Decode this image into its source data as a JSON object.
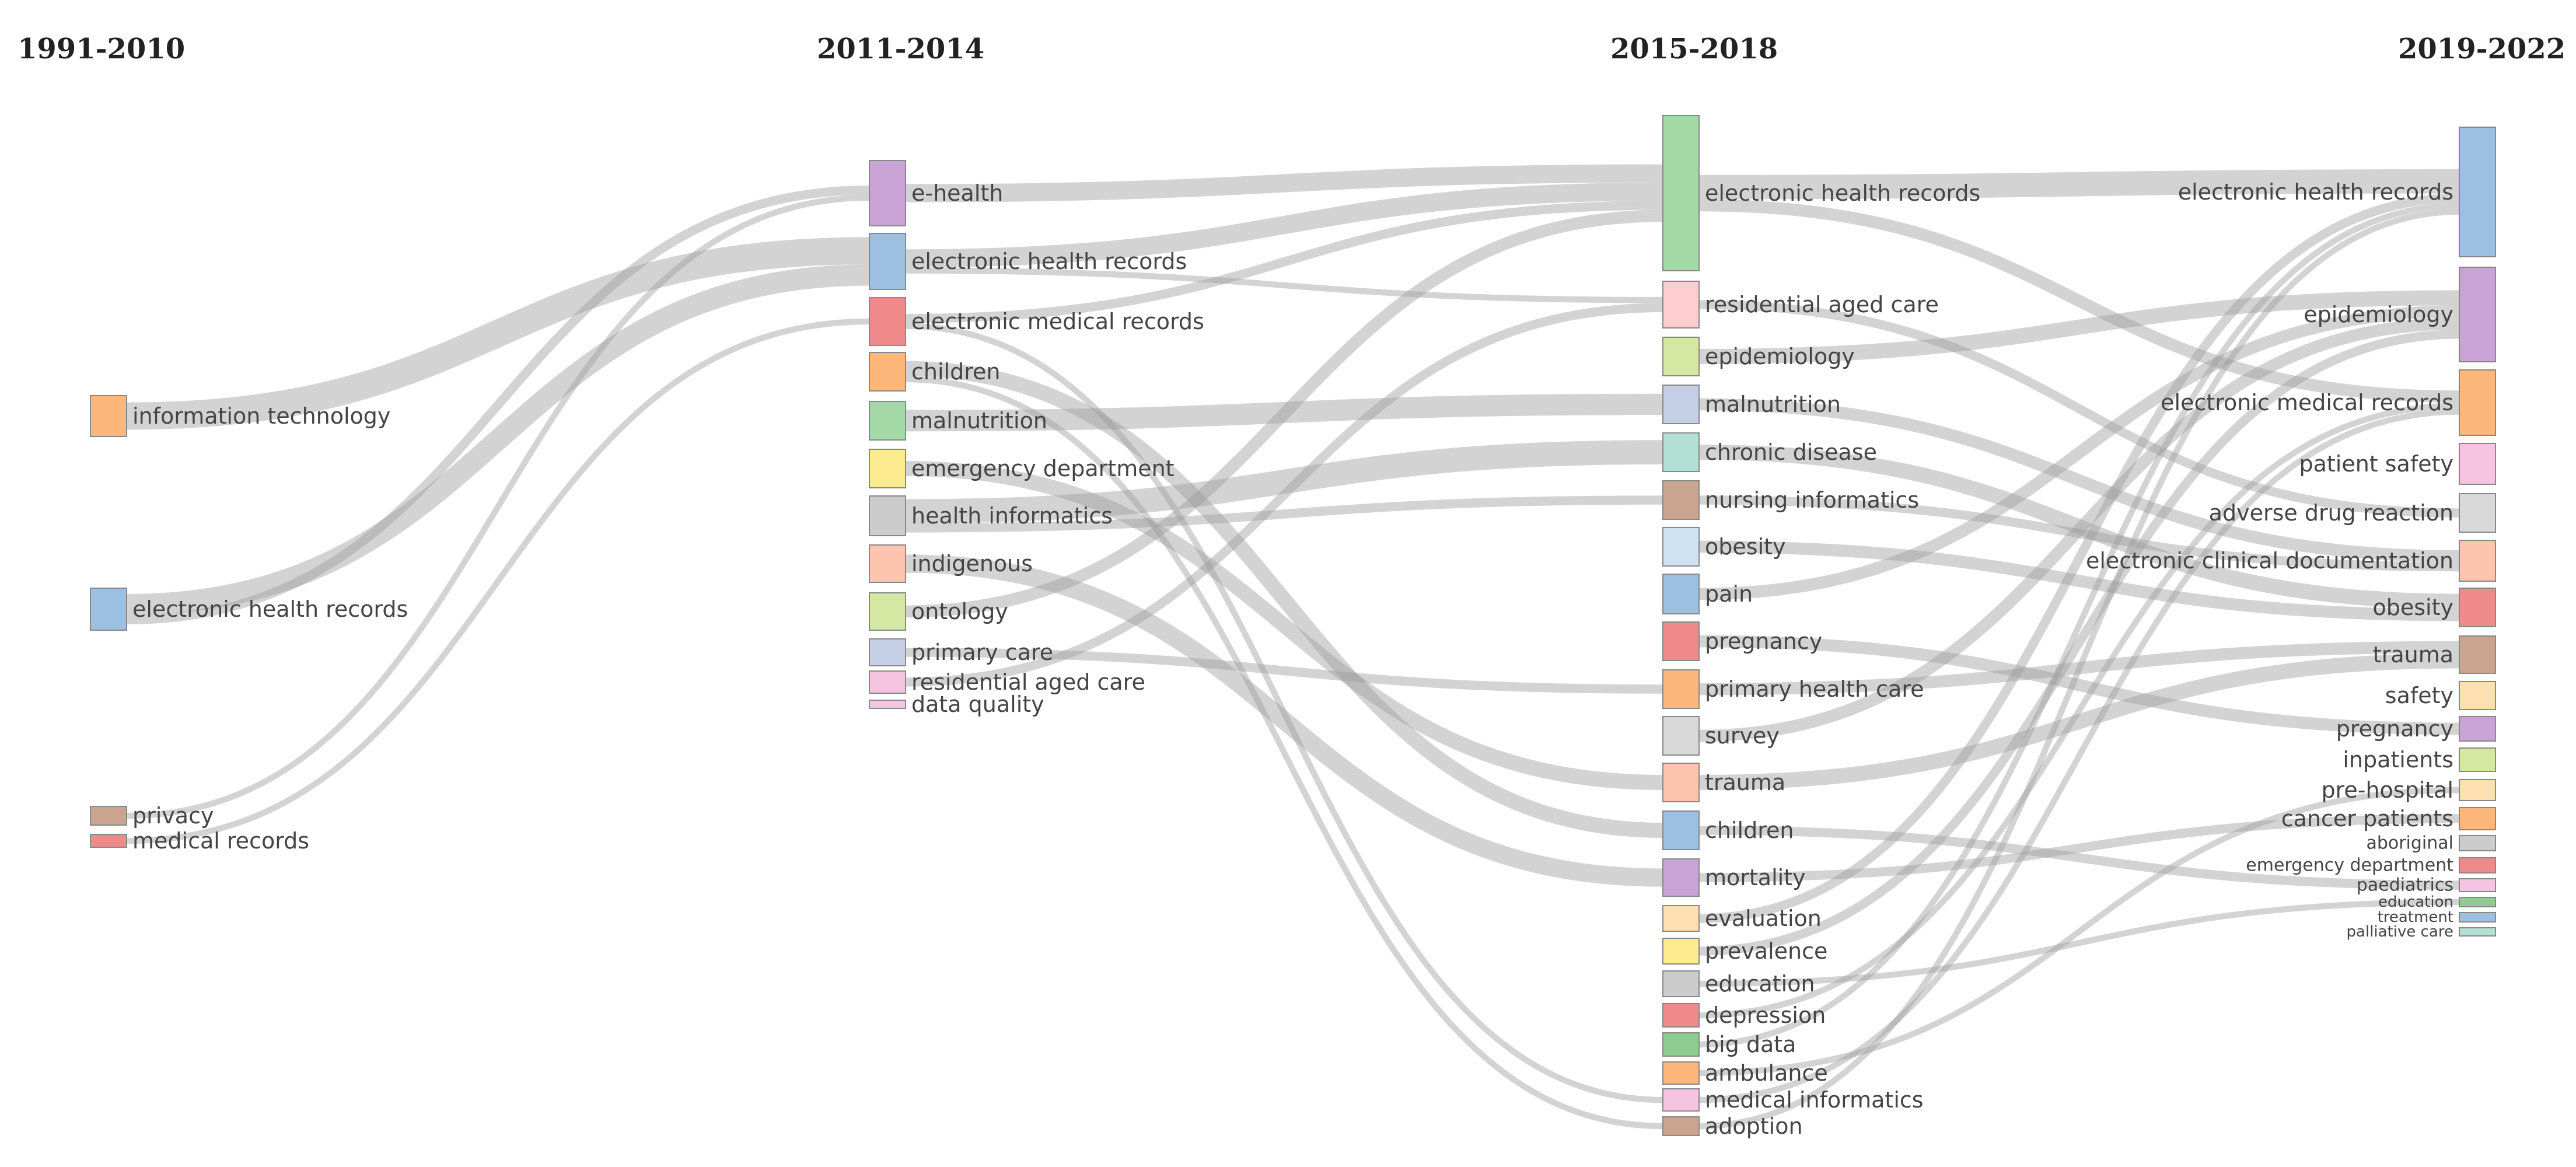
{
  "columns": [
    {
      "title": "1991-2010",
      "nodes": [
        {
          "label": "information technology",
          "color": "#fdb77a"
        },
        {
          "label": "electronic health records",
          "color": "#9dbfe0"
        },
        {
          "label": "privacy",
          "color": "#c9a58f"
        },
        {
          "label": "medical records",
          "color": "#ef8a8a"
        }
      ]
    },
    {
      "title": "2011-2014",
      "nodes": [
        {
          "label": "e-health",
          "color": "#c9a3d6"
        },
        {
          "label": "electronic health records",
          "color": "#9dbfe0"
        },
        {
          "label": "electronic medical records",
          "color": "#ef8a8a"
        },
        {
          "label": "children",
          "color": "#fdb77a"
        },
        {
          "label": "malnutrition",
          "color": "#a3d9a5"
        },
        {
          "label": "emergency department",
          "color": "#fdeb8f"
        },
        {
          "label": "health informatics",
          "color": "#cccccc"
        },
        {
          "label": "indigenous",
          "color": "#fdc5b0"
        },
        {
          "label": "ontology",
          "color": "#d4e8a3"
        },
        {
          "label": "primary care",
          "color": "#c5cfe8"
        },
        {
          "label": "residential aged care",
          "color": "#f5c4e0"
        },
        {
          "label": "data quality",
          "color": "#f5c4e0"
        }
      ]
    },
    {
      "title": "2015-2018",
      "nodes": [
        {
          "label": "electronic health records",
          "color": "#a3d9a5"
        },
        {
          "label": "residential aged care",
          "color": "#fdcdd0"
        },
        {
          "label": "epidemiology",
          "color": "#d4e8a3"
        },
        {
          "label": "malnutrition",
          "color": "#c5cfe8"
        },
        {
          "label": "chronic disease",
          "color": "#b3e0d4"
        },
        {
          "label": "nursing informatics",
          "color": "#c9a58f"
        },
        {
          "label": "obesity",
          "color": "#cfe3f2"
        },
        {
          "label": "pain",
          "color": "#9dbfe0"
        },
        {
          "label": "pregnancy",
          "color": "#ef8a8a"
        },
        {
          "label": "primary health care",
          "color": "#fdb77a"
        },
        {
          "label": "survey",
          "color": "#d9d9d9"
        },
        {
          "label": "trauma",
          "color": "#fdc5b0"
        },
        {
          "label": "children",
          "color": "#9dbfe0"
        },
        {
          "label": "mortality",
          "color": "#c9a3d6"
        },
        {
          "label": "evaluation",
          "color": "#fde0b0"
        },
        {
          "label": "prevalence",
          "color": "#fdeb8f"
        },
        {
          "label": "education",
          "color": "#cccccc"
        },
        {
          "label": "depression",
          "color": "#ef8a8a"
        },
        {
          "label": "big data",
          "color": "#8fcc8f"
        },
        {
          "label": "ambulance",
          "color": "#fdb77a"
        },
        {
          "label": "medical informatics",
          "color": "#f5c4e0"
        },
        {
          "label": "adoption",
          "color": "#c9a58f"
        }
      ]
    },
    {
      "title": "2019-2022",
      "nodes": [
        {
          "label": "electronic health records",
          "color": "#9dbfe0"
        },
        {
          "label": "epidemiology",
          "color": "#c9a3d6"
        },
        {
          "label": "electronic medical records",
          "color": "#fdb77a"
        },
        {
          "label": "patient safety",
          "color": "#f5c4e0"
        },
        {
          "label": "adverse drug reaction",
          "color": "#d9d9d9"
        },
        {
          "label": "electronic clinical documentation",
          "color": "#fdc5b0"
        },
        {
          "label": "obesity",
          "color": "#ef8a8a"
        },
        {
          "label": "trauma",
          "color": "#c9a58f"
        },
        {
          "label": "safety",
          "color": "#fde0b0"
        },
        {
          "label": "pregnancy",
          "color": "#c9a3d6"
        },
        {
          "label": "inpatients",
          "color": "#d4e8a3"
        },
        {
          "label": "pre-hospital",
          "color": "#fde0b0"
        },
        {
          "label": "cancer patients",
          "color": "#fdb77a"
        },
        {
          "label": "aboriginal",
          "color": "#cccccc"
        },
        {
          "label": "emergency department",
          "color": "#ef8a8a"
        },
        {
          "label": "paediatrics",
          "color": "#f5c4e0"
        },
        {
          "label": "education",
          "color": "#8fcc8f"
        },
        {
          "label": "treatment",
          "color": "#9dbfe0"
        },
        {
          "label": "palliative care",
          "color": "#b3e0d4"
        }
      ]
    }
  ],
  "links": [
    {
      "from": [
        0,
        0
      ],
      "to": [
        1,
        1
      ],
      "weight": 9
    },
    {
      "from": [
        0,
        1
      ],
      "to": [
        1,
        1
      ],
      "weight": 7
    },
    {
      "from": [
        0,
        1
      ],
      "to": [
        1,
        0
      ],
      "weight": 3
    },
    {
      "from": [
        0,
        2
      ],
      "to": [
        1,
        0
      ],
      "weight": 2
    },
    {
      "from": [
        0,
        3
      ],
      "to": [
        1,
        2
      ],
      "weight": 2
    },
    {
      "from": [
        1,
        0
      ],
      "to": [
        2,
        0
      ],
      "weight": 6
    },
    {
      "from": [
        1,
        1
      ],
      "to": [
        2,
        0
      ],
      "weight": 6
    },
    {
      "from": [
        1,
        1
      ],
      "to": [
        2,
        1
      ],
      "weight": 2
    },
    {
      "from": [
        1,
        2
      ],
      "to": [
        2,
        0
      ],
      "weight": 3
    },
    {
      "from": [
        1,
        3
      ],
      "to": [
        2,
        12
      ],
      "weight": 5
    },
    {
      "from": [
        1,
        4
      ],
      "to": [
        2,
        3
      ],
      "weight": 7
    },
    {
      "from": [
        1,
        5
      ],
      "to": [
        2,
        11
      ],
      "weight": 5
    },
    {
      "from": [
        1,
        6
      ],
      "to": [
        2,
        4
      ],
      "weight": 8
    },
    {
      "from": [
        1,
        6
      ],
      "to": [
        2,
        5
      ],
      "weight": 3
    },
    {
      "from": [
        1,
        7
      ],
      "to": [
        2,
        13
      ],
      "weight": 6
    },
    {
      "from": [
        1,
        8
      ],
      "to": [
        2,
        0
      ],
      "weight": 4
    },
    {
      "from": [
        1,
        9
      ],
      "to": [
        2,
        9
      ],
      "weight": 3
    },
    {
      "from": [
        1,
        10
      ],
      "to": [
        2,
        1
      ],
      "weight": 3
    },
    {
      "from": [
        1,
        2
      ],
      "to": [
        2,
        20
      ],
      "weight": 2
    },
    {
      "from": [
        1,
        3
      ],
      "to": [
        2,
        21
      ],
      "weight": 2
    },
    {
      "from": [
        2,
        0
      ],
      "to": [
        3,
        0
      ],
      "weight": 8
    },
    {
      "from": [
        2,
        0
      ],
      "to": [
        3,
        2
      ],
      "weight": 4
    },
    {
      "from": [
        2,
        1
      ],
      "to": [
        3,
        4
      ],
      "weight": 3
    },
    {
      "from": [
        2,
        2
      ],
      "to": [
        3,
        1
      ],
      "weight": 5
    },
    {
      "from": [
        2,
        3
      ],
      "to": [
        3,
        5
      ],
      "weight": 4
    },
    {
      "from": [
        2,
        4
      ],
      "to": [
        3,
        6
      ],
      "weight": 5
    },
    {
      "from": [
        2,
        5
      ],
      "to": [
        3,
        5
      ],
      "weight": 3
    },
    {
      "from": [
        2,
        6
      ],
      "to": [
        3,
        6
      ],
      "weight": 4
    },
    {
      "from": [
        2,
        7
      ],
      "to": [
        3,
        1
      ],
      "weight": 4
    },
    {
      "from": [
        2,
        8
      ],
      "to": [
        3,
        9
      ],
      "weight": 4
    },
    {
      "from": [
        2,
        9
      ],
      "to": [
        3,
        7
      ],
      "weight": 4
    },
    {
      "from": [
        2,
        10
      ],
      "to": [
        3,
        1
      ],
      "weight": 4
    },
    {
      "from": [
        2,
        11
      ],
      "to": [
        3,
        7
      ],
      "weight": 5
    },
    {
      "from": [
        2,
        12
      ],
      "to": [
        3,
        15
      ],
      "weight": 3
    },
    {
      "from": [
        2,
        13
      ],
      "to": [
        3,
        12
      ],
      "weight": 3
    },
    {
      "from": [
        2,
        14
      ],
      "to": [
        3,
        0
      ],
      "weight": 3
    },
    {
      "from": [
        2,
        15
      ],
      "to": [
        3,
        1
      ],
      "weight": 3
    },
    {
      "from": [
        2,
        16
      ],
      "to": [
        3,
        16
      ],
      "weight": 2
    },
    {
      "from": [
        2,
        17
      ],
      "to": [
        3,
        2
      ],
      "weight": 2
    },
    {
      "from": [
        2,
        18
      ],
      "to": [
        3,
        0
      ],
      "weight": 2
    },
    {
      "from": [
        2,
        19
      ],
      "to": [
        3,
        11
      ],
      "weight": 2
    },
    {
      "from": [
        2,
        20
      ],
      "to": [
        3,
        2
      ],
      "weight": 2
    },
    {
      "from": [
        2,
        21
      ],
      "to": [
        3,
        0
      ],
      "weight": 2
    }
  ]
}
